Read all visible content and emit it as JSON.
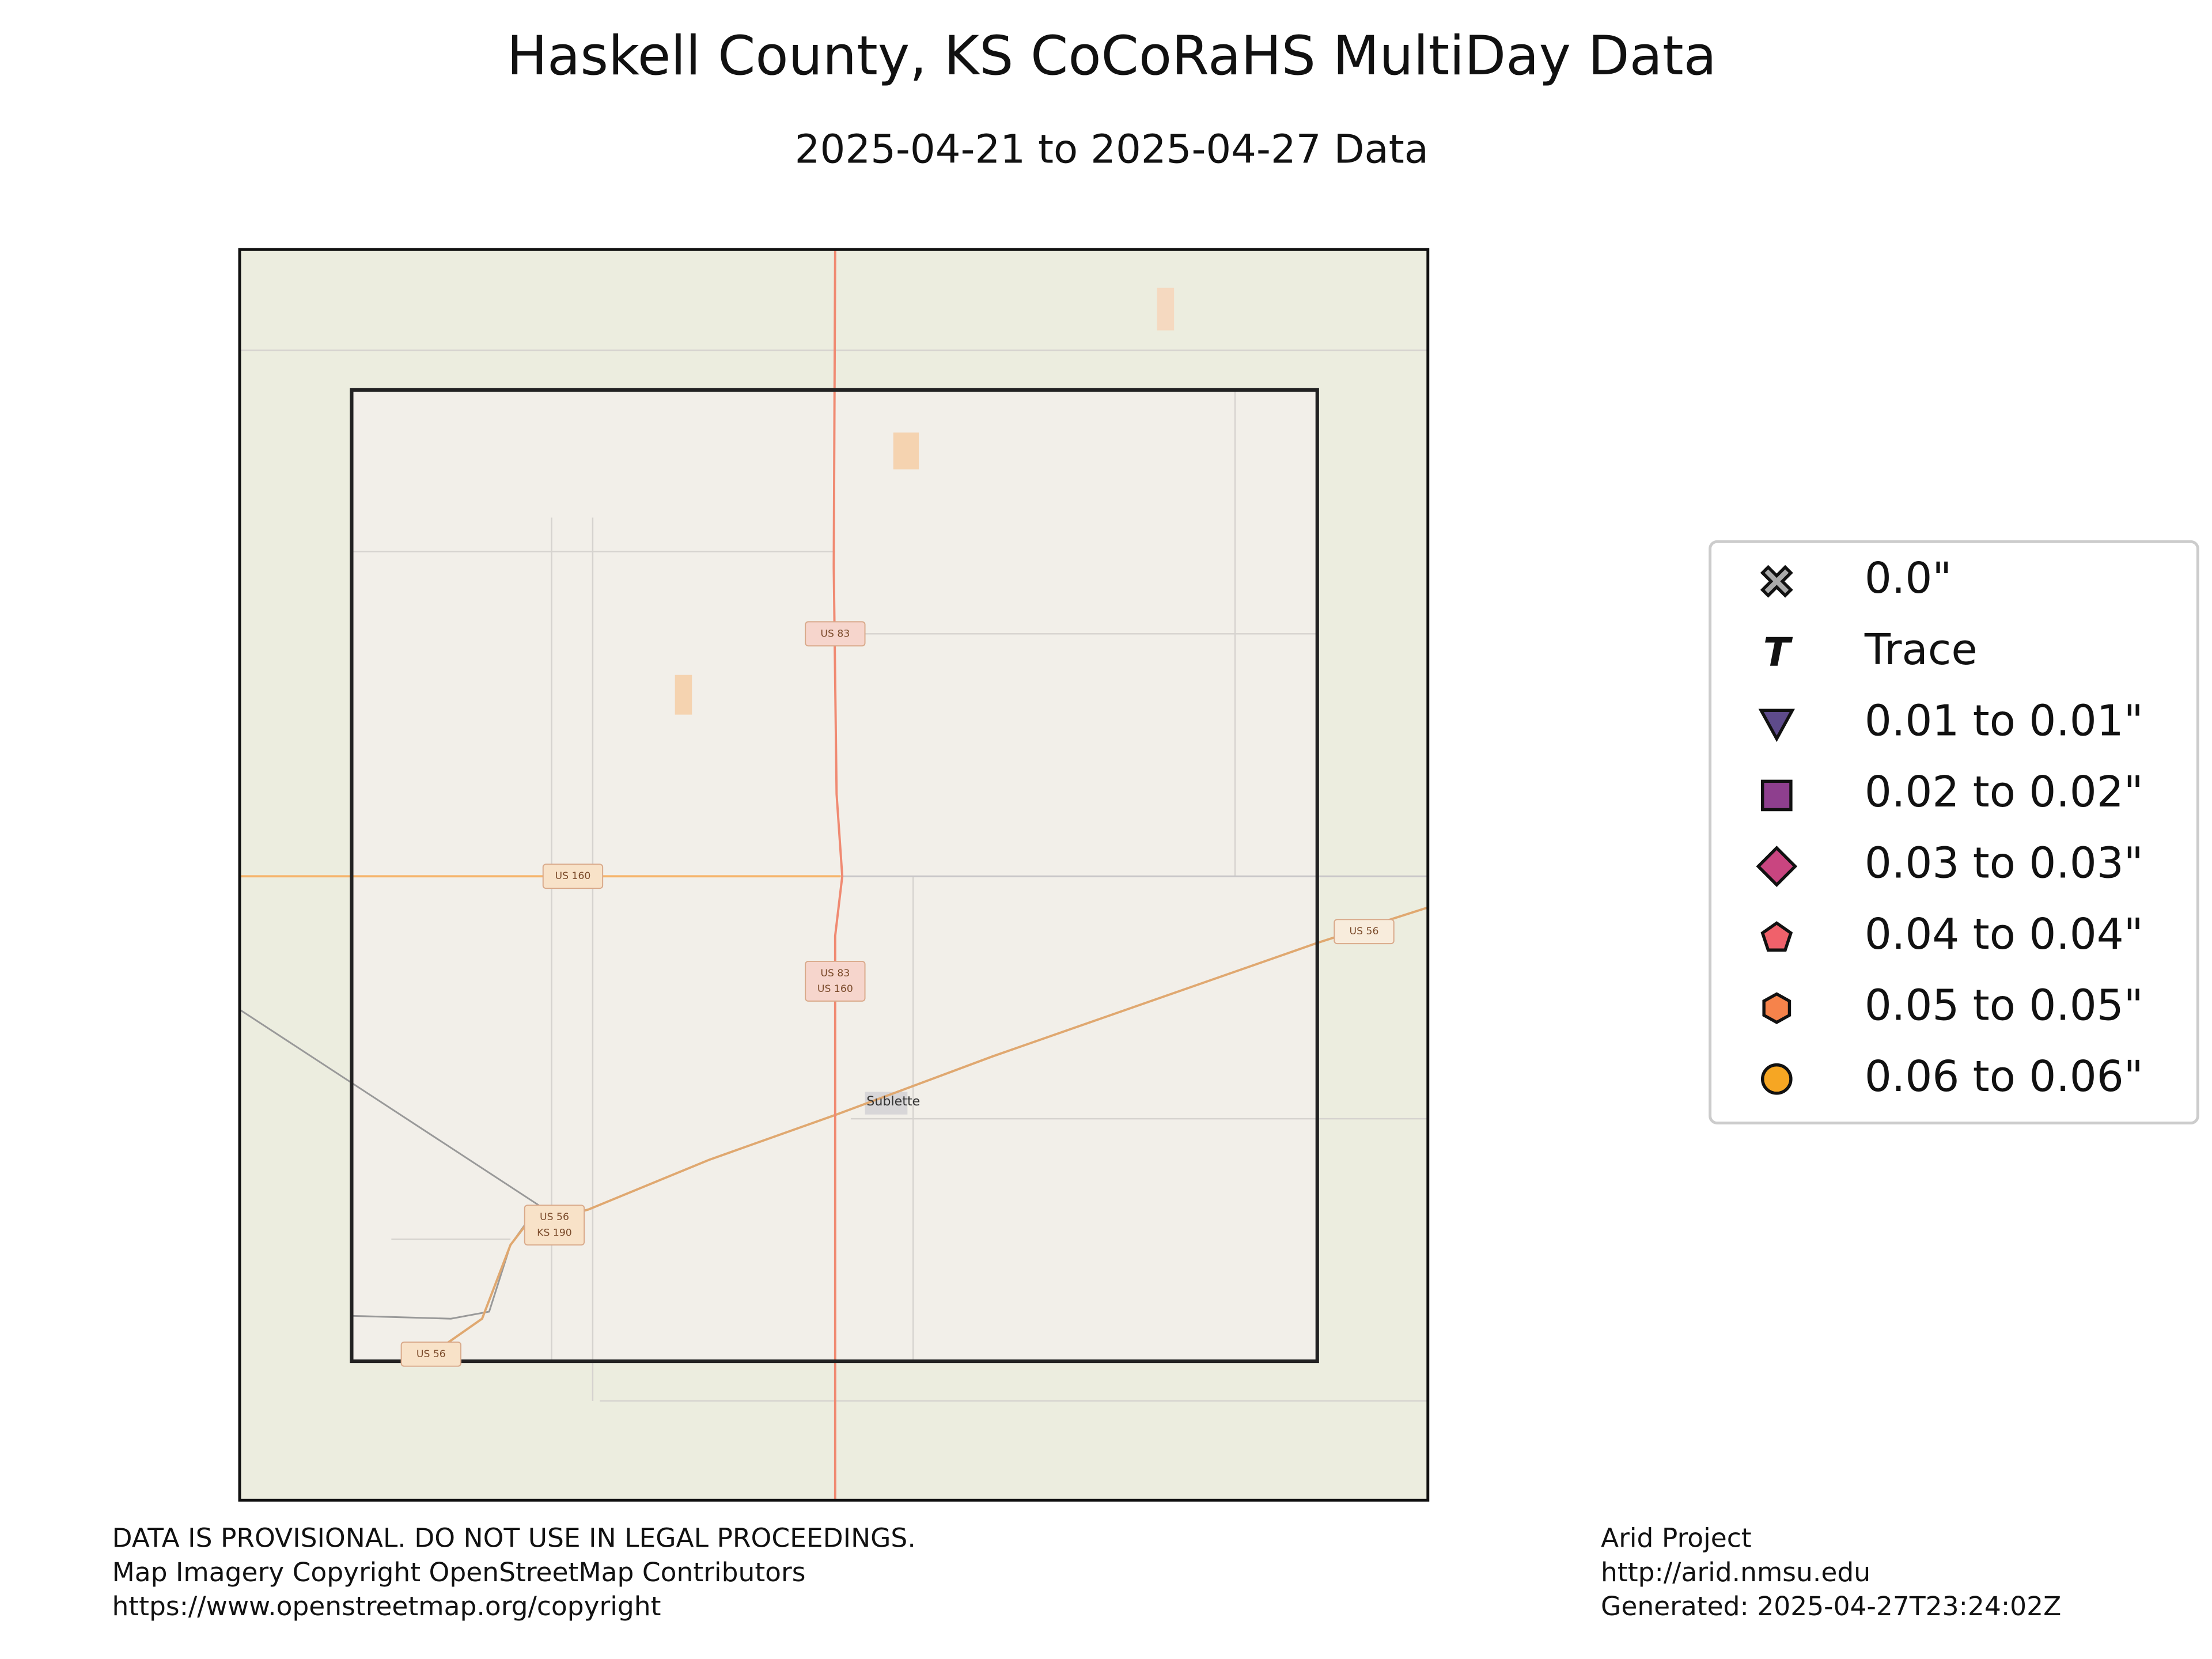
{
  "header": {
    "title": "Haskell County, KS CoCoRaHS MultiDay Data",
    "subtitle": "2025-04-21 to 2025-04-27 Data"
  },
  "map": {
    "road_labels": [
      [
        "US 83"
      ],
      [
        "US 160"
      ],
      [
        "US 83",
        "US 160"
      ],
      [
        "US 56",
        "KS 190"
      ],
      [
        "US 56"
      ],
      [
        "US 56"
      ]
    ],
    "town": "Sublette"
  },
  "legend": {
    "items": [
      "0.0\"",
      "Trace",
      "0.01 to 0.01\"",
      "0.02 to 0.02\"",
      "0.03 to 0.03\"",
      "0.04 to 0.04\"",
      "0.05 to 0.05\"",
      "0.06 to 0.06\""
    ]
  },
  "footer": {
    "left": [
      "DATA IS PROVISIONAL. DO NOT USE IN LEGAL PROCEEDINGS.",
      "Map Imagery Copyright OpenStreetMap Contributors",
      "https://www.openstreetmap.org/copyright"
    ],
    "right": [
      "Arid Project",
      "http://arid.nmsu.edu",
      "Generated: 2025-04-27T23:24:02Z"
    ]
  }
}
